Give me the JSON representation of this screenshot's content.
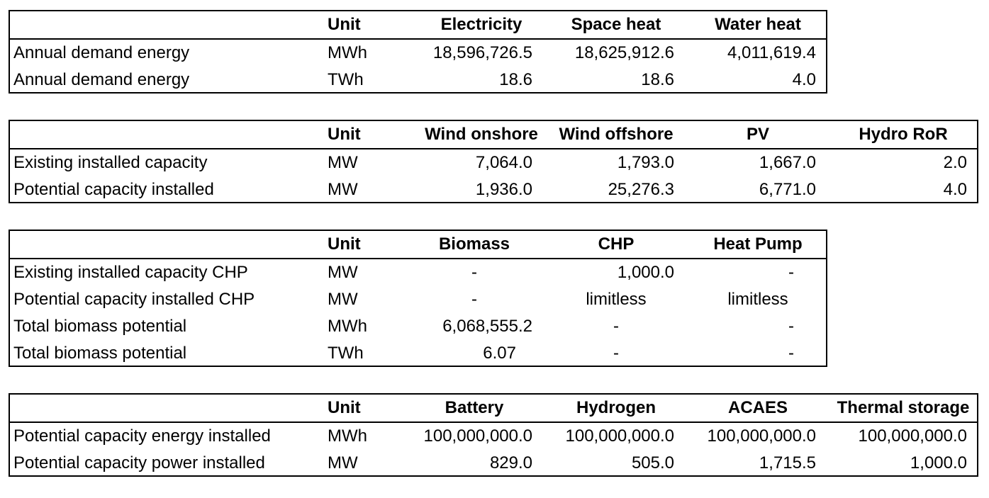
{
  "tables": [
    {
      "unit_header": "Unit",
      "columns": [
        "Electricity",
        "Space heat",
        "Water heat"
      ],
      "rows": [
        {
          "label": "Annual demand energy",
          "unit": "MWh",
          "values": [
            "18,596,726.5",
            "18,625,912.6",
            "4,011,619.4"
          ]
        },
        {
          "label": "Annual demand energy",
          "unit": "TWh",
          "values": [
            "18.6",
            "18.6",
            "4.0"
          ]
        }
      ]
    },
    {
      "unit_header": "Unit",
      "columns": [
        "Wind onshore",
        "Wind offshore",
        "PV",
        "Hydro RoR"
      ],
      "rows": [
        {
          "label": "Existing installed capacity",
          "unit": "MW",
          "values": [
            "7,064.0",
            "1,793.0",
            "1,667.0",
            "2.0"
          ]
        },
        {
          "label": "Potential capacity installed",
          "unit": "MW",
          "values": [
            "1,936.0",
            "25,276.3",
            "6,771.0",
            "4.0"
          ]
        }
      ]
    },
    {
      "unit_header": "Unit",
      "columns": [
        "Biomass",
        "CHP",
        "Heat Pump"
      ],
      "rows": [
        {
          "label": "Existing installed capacity CHP",
          "unit": "MW",
          "values": [
            "-",
            "1,000.0",
            "-"
          ]
        },
        {
          "label": "Potential capacity installed CHP",
          "unit": "MW",
          "values": [
            "-",
            "limitless",
            "limitless"
          ]
        },
        {
          "label": "Total biomass potential",
          "unit": "MWh",
          "values": [
            "6,068,555.2",
            "-",
            "-"
          ]
        },
        {
          "label": "Total biomass potential",
          "unit": "TWh",
          "values": [
            "6.07",
            "-",
            "-"
          ]
        }
      ]
    },
    {
      "unit_header": "Unit",
      "columns": [
        "Battery",
        "Hydrogen",
        "ACAES",
        "Thermal storage"
      ],
      "rows": [
        {
          "label": "Potential capacity energy installed",
          "unit": "MWh",
          "values": [
            "100,000,000.0",
            "100,000,000.0",
            "100,000,000.0",
            "100,000,000.0"
          ]
        },
        {
          "label": "Potential capacity power installed",
          "unit": "MW",
          "values": [
            "829.0",
            "505.0",
            "1,715.5",
            "1,000.0"
          ]
        }
      ]
    }
  ]
}
